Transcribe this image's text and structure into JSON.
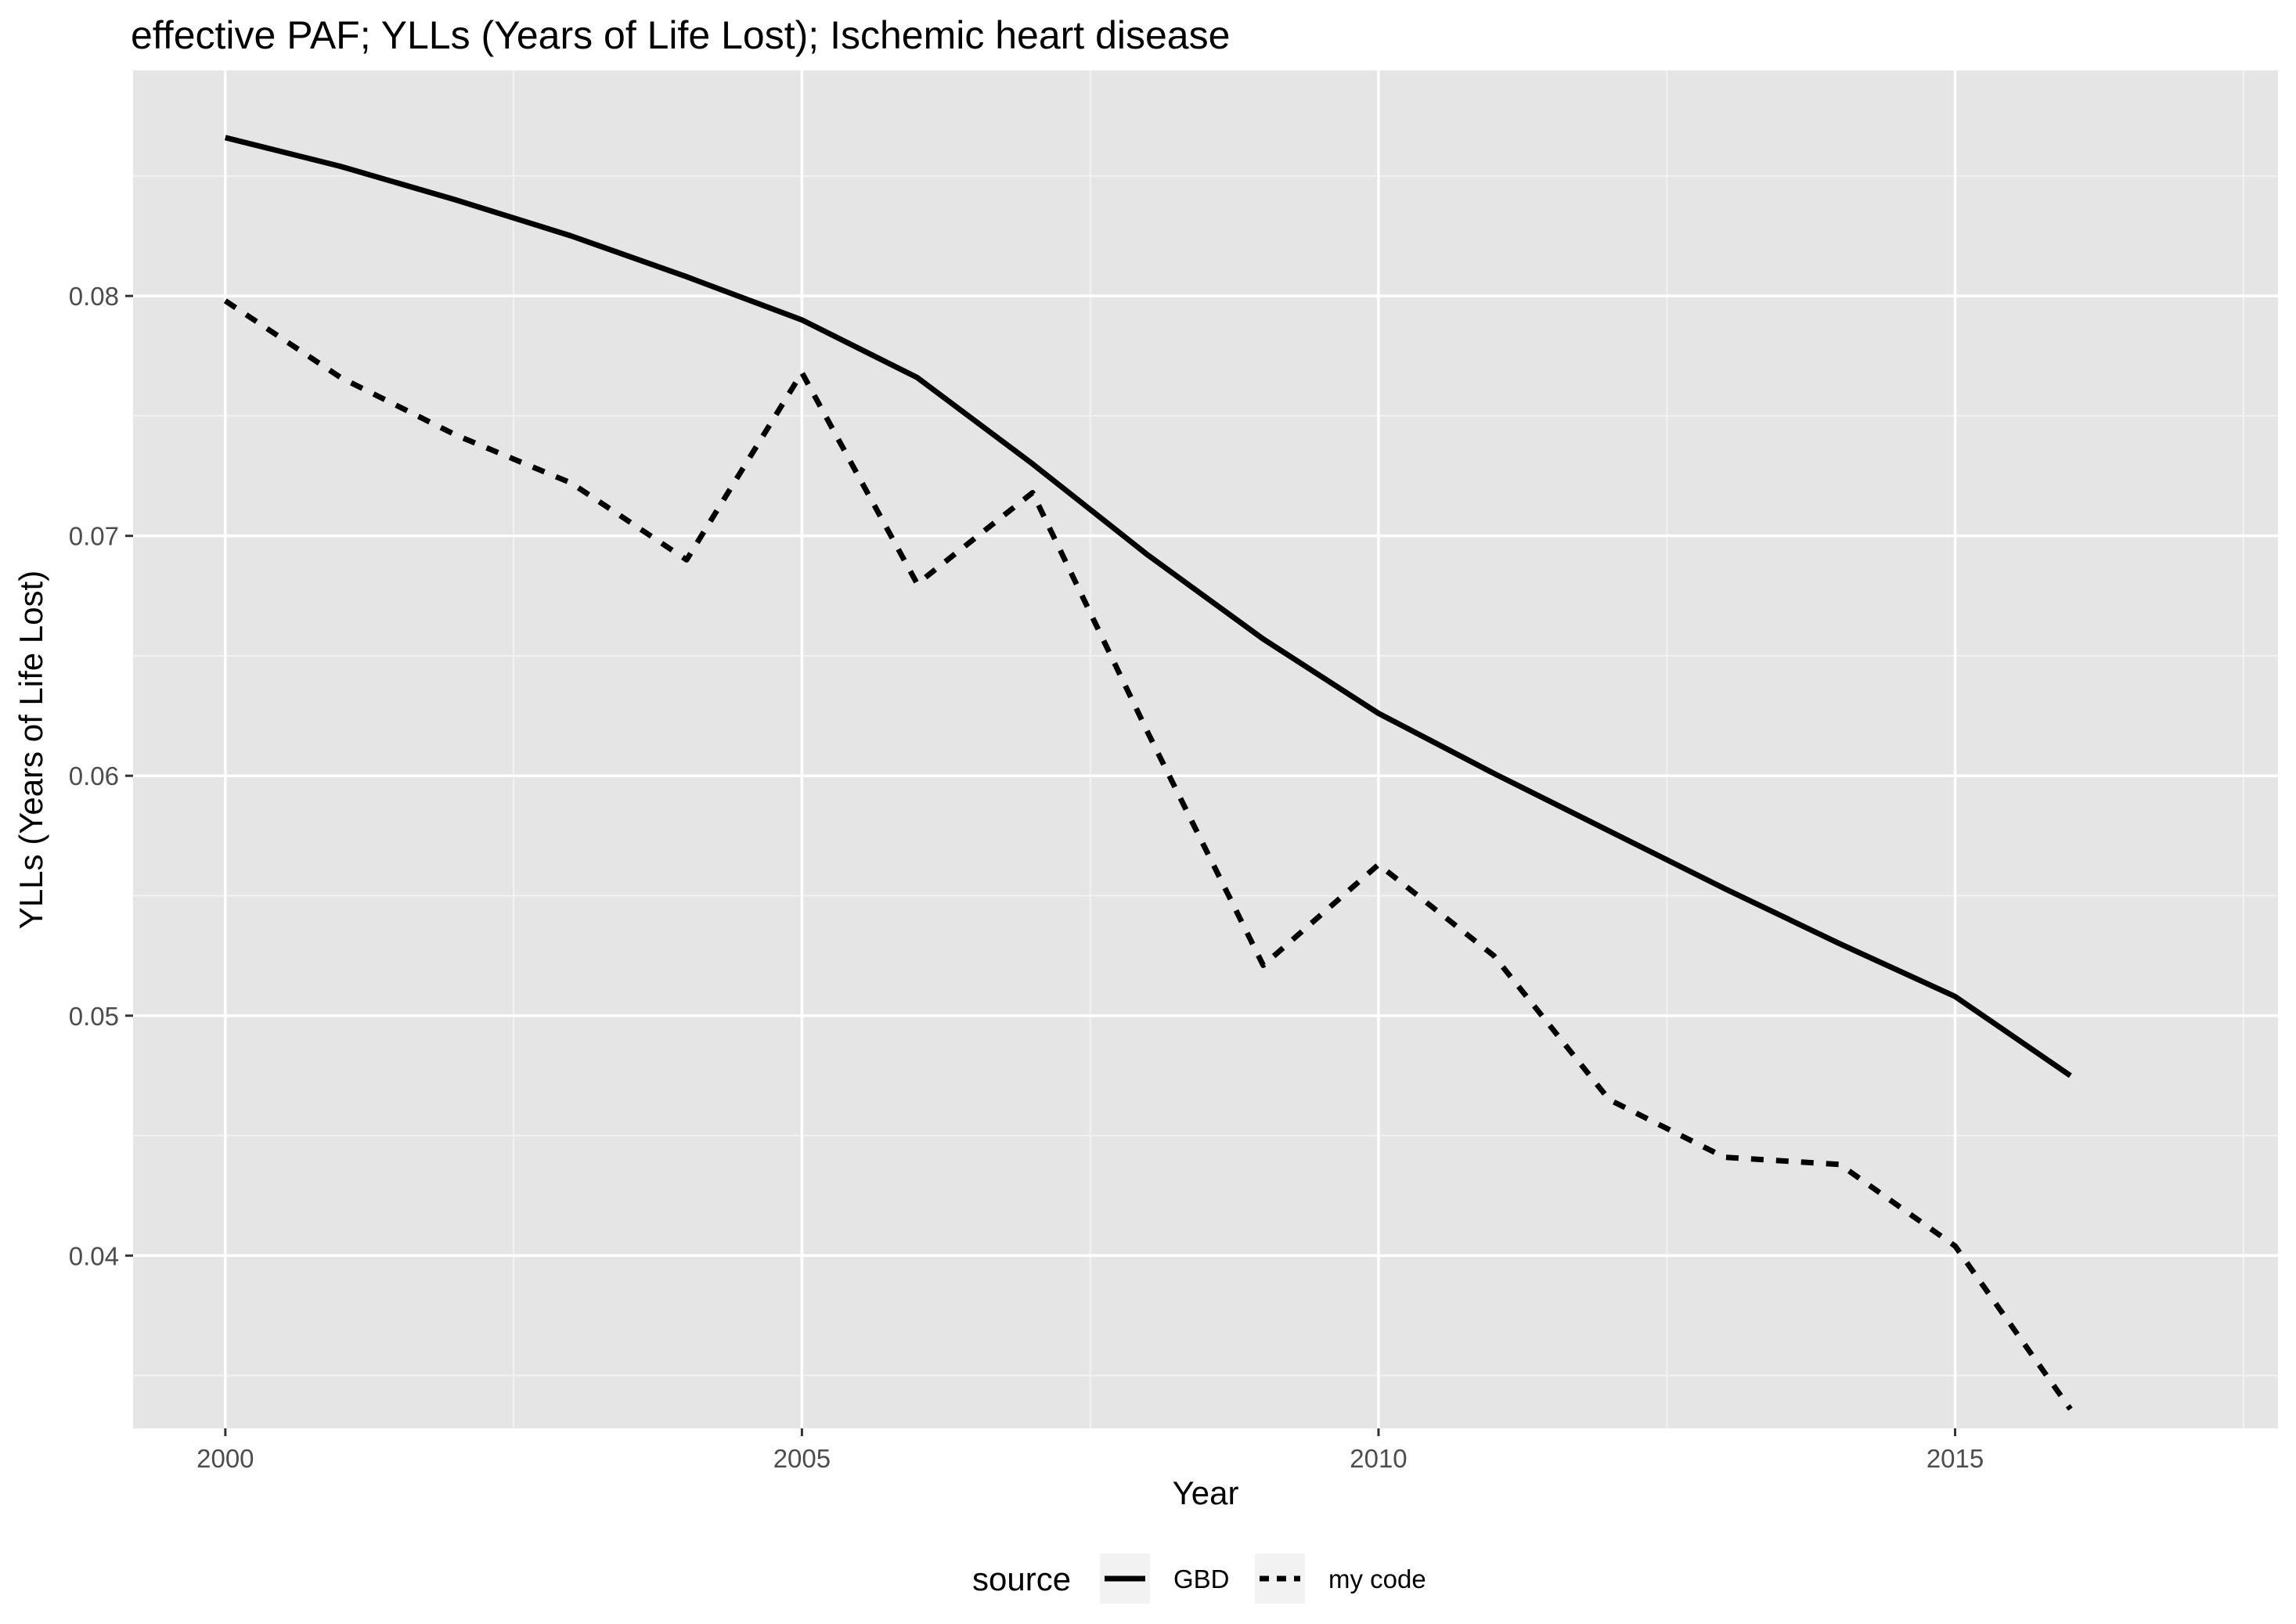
{
  "chart_data": {
    "type": "line",
    "title": "effective PAF; YLLs (Years of Life Lost); Ischemic heart disease",
    "xlabel": "Year",
    "ylabel": "YLLs (Years of Life Lost)",
    "xlim": [
      1999.2,
      2017.8
    ],
    "ylim": [
      0.0328,
      0.0894
    ],
    "x_ticks": [
      2000,
      2005,
      2010,
      2015
    ],
    "x_tick_labels": [
      "2000",
      "2005",
      "2010",
      "2015"
    ],
    "x_minor_ticks": [
      2002.5,
      2007.5,
      2012.5,
      2017.5
    ],
    "y_ticks": [
      0.04,
      0.05,
      0.06,
      0.07,
      0.08
    ],
    "y_tick_labels": [
      "0.04",
      "0.05",
      "0.06",
      "0.07",
      "0.08"
    ],
    "y_minor_ticks": [
      0.035,
      0.045,
      0.055,
      0.065,
      0.075,
      0.085
    ],
    "grid": true,
    "legend": {
      "title": "source",
      "position": "bottom"
    },
    "x": [
      2000,
      2001,
      2002,
      2003,
      2004,
      2005,
      2006,
      2007,
      2008,
      2009,
      2010,
      2011,
      2012,
      2013,
      2014,
      2015,
      2016
    ],
    "series": [
      {
        "name": "GBD",
        "linetype": "solid",
        "color": "#000000",
        "values": [
          0.0866,
          0.0854,
          0.084,
          0.0825,
          0.0808,
          0.079,
          0.0766,
          0.073,
          0.0692,
          0.0657,
          0.0626,
          0.0601,
          0.0577,
          0.0553,
          0.053,
          0.0508,
          0.0475
        ]
      },
      {
        "name": "my code",
        "linetype": "dashed",
        "color": "#000000",
        "values": [
          0.0798,
          0.0766,
          0.0742,
          0.0722,
          0.069,
          0.0768,
          0.068,
          0.0718,
          0.0618,
          0.0521,
          0.0563,
          0.0525,
          0.0465,
          0.0441,
          0.0438,
          0.0404,
          0.0336
        ]
      }
    ]
  },
  "colors": {
    "panel_background": "#e5e5e5",
    "grid_major": "#ffffff",
    "grid_minor": "#f2f2f2",
    "tick_text": "#4d4d4d"
  }
}
